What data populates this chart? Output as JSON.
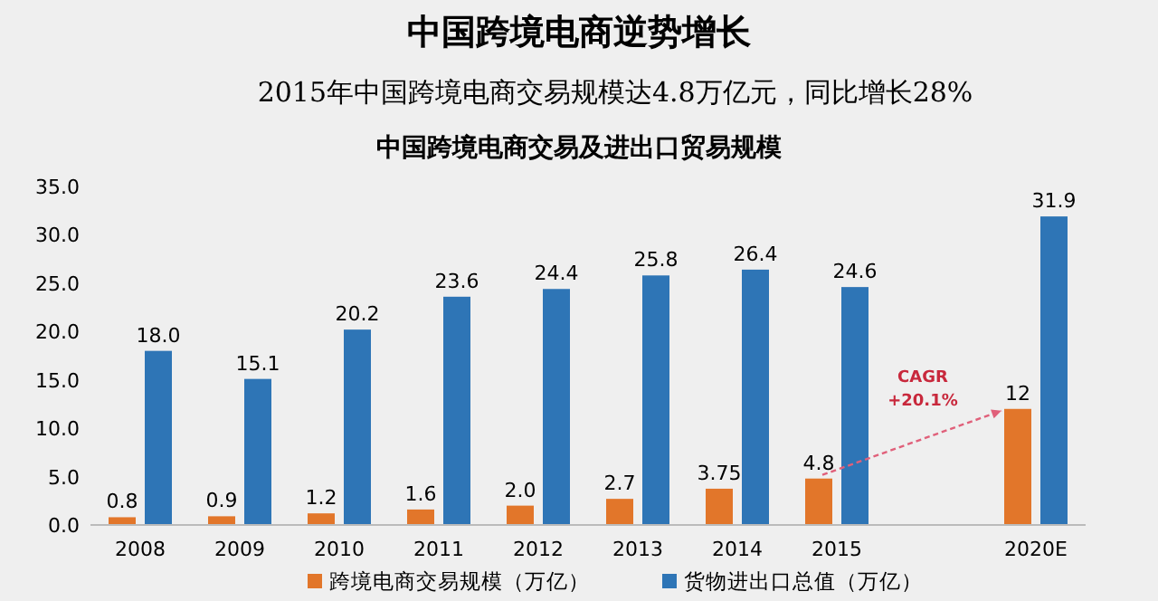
{
  "chart_data": {
    "type": "bar",
    "title": "中国跨境电商逆势增长",
    "subtitle": "2015年中国跨境电商交易规模达4.8万亿元，同比增长28%",
    "annotations": [
      "中国跨境电商交易及进出口贸易规模",
      "CAGR +20.1%"
    ],
    "categories": [
      "2008",
      "2009",
      "2010",
      "2011",
      "2012",
      "2013",
      "2014",
      "2015",
      null,
      "2020E"
    ],
    "series": [
      {
        "name": "跨境电商交易规模（万亿）",
        "color": "#e2762a",
        "values": [
          0.8,
          0.9,
          1.2,
          1.6,
          2.0,
          2.7,
          3.75,
          4.8,
          null,
          12
        ],
        "value_labels": [
          "0.8",
          "0.9",
          "1.2",
          "1.6",
          "2.0",
          "2.7",
          "3.75",
          "4.8",
          null,
          "12"
        ]
      },
      {
        "name": "货物进出口总值（万亿）",
        "color": "#2e75b6",
        "values": [
          18.0,
          15.1,
          20.2,
          23.6,
          24.4,
          25.8,
          26.4,
          24.6,
          null,
          31.9
        ],
        "value_labels": [
          "18.0",
          "15.1",
          "20.2",
          "23.6",
          "24.4",
          "25.8",
          "26.4",
          "24.6",
          null,
          "31.9"
        ]
      }
    ],
    "ylim": [
      0,
      35
    ],
    "yticks": [
      {
        "value": 0,
        "label": "0.0"
      },
      {
        "value": 5,
        "label": "5.0"
      },
      {
        "value": 10,
        "label": "10.0"
      },
      {
        "value": 15,
        "label": "15.0"
      },
      {
        "value": 20,
        "label": "20.0"
      },
      {
        "value": 25,
        "label": "25.0"
      },
      {
        "value": 30,
        "label": "30.0"
      },
      {
        "value": 35,
        "label": "35.0"
      }
    ],
    "grid": false,
    "legend": "bottom"
  }
}
